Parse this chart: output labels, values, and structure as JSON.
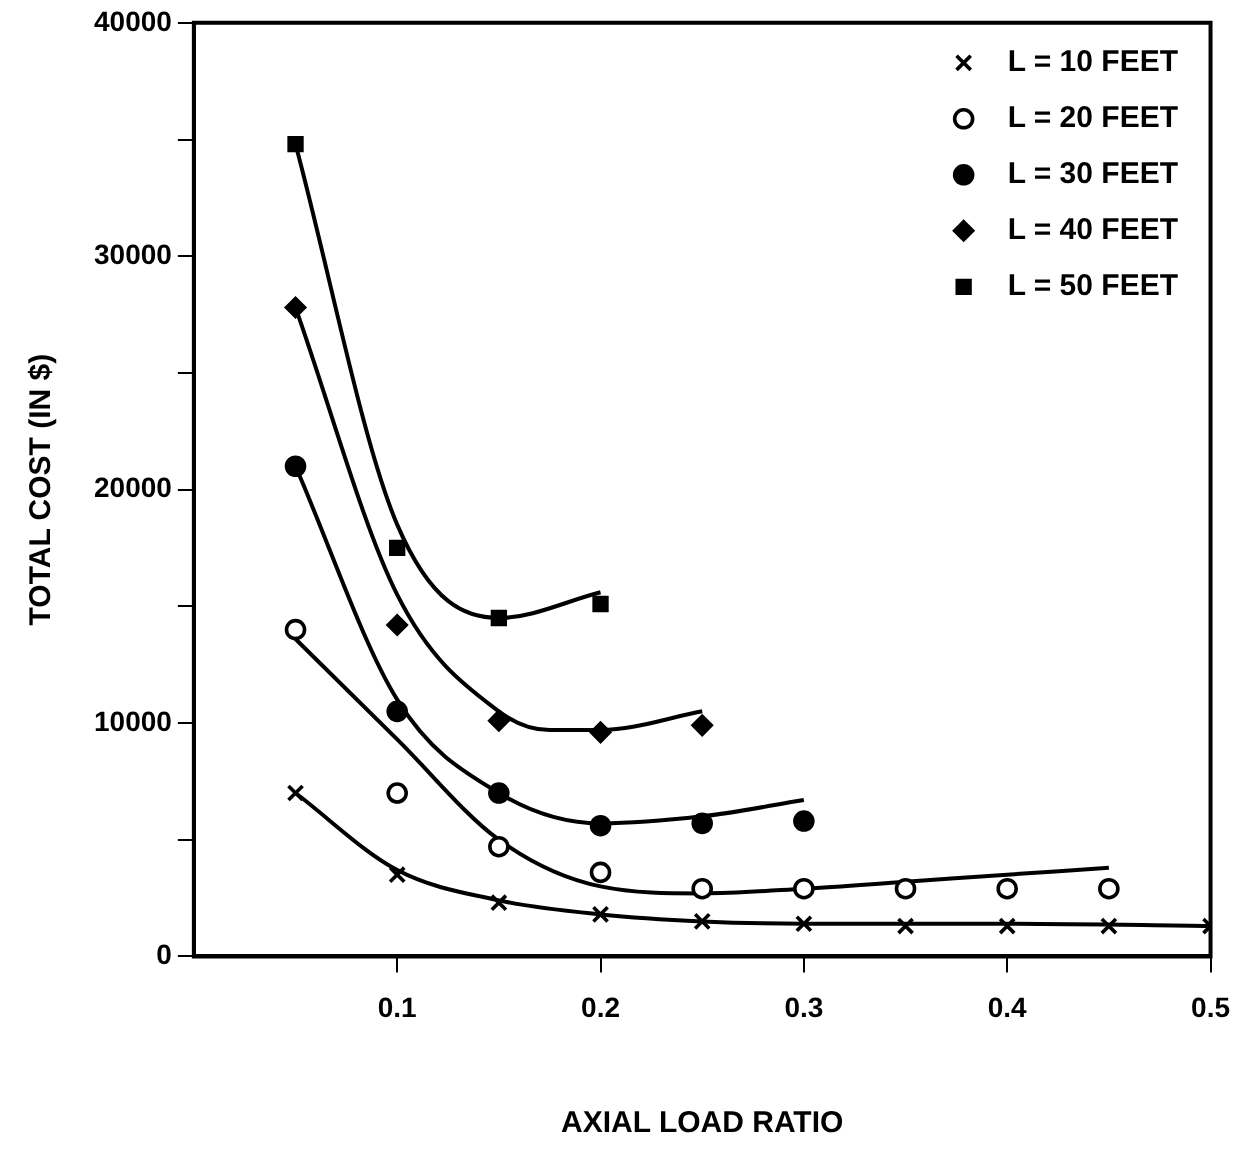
{
  "chart_data": {
    "type": "scatter",
    "xlabel": "AXIAL LOAD RATIO",
    "ylabel": "TOTAL COST (IN $)",
    "xlim": [
      0,
      0.5
    ],
    "xticks": [
      0.1,
      0.2,
      0.3,
      0.4,
      0.5
    ],
    "ylim": [
      0,
      40000
    ],
    "yticks": [
      0,
      {
        "value": 5000,
        "label": null
      },
      10000,
      {
        "value": 15000,
        "label": null
      },
      20000,
      {
        "value": 25000,
        "label": null
      },
      30000,
      {
        "value": 35000,
        "label": null
      },
      40000
    ],
    "grid": false,
    "legend": "top right",
    "series": [
      {
        "name": "L = 10 FEET",
        "color": "#000000",
        "marker": "cross",
        "x": [
          0.05,
          0.1,
          0.15,
          0.2,
          0.25,
          0.3,
          0.35,
          0.4,
          0.45,
          0.5
        ],
        "values": [
          7000,
          3500,
          2300,
          1800,
          1500,
          1400,
          1300,
          1300,
          1300,
          1300
        ]
      },
      {
        "name": "L = 20 FEET",
        "color": "#ffffff",
        "marker": "circle",
        "x": [
          0.05,
          0.1,
          0.15,
          0.2,
          0.25,
          0.3,
          0.35,
          0.4,
          0.45
        ],
        "values": [
          14000,
          7000,
          4700,
          3600,
          2900,
          2900,
          2900,
          2900,
          2900
        ]
      },
      {
        "name": "L = 30 FEET",
        "color": "#000000",
        "marker": "circle",
        "x": [
          0.05,
          0.1,
          0.15,
          0.2,
          0.25,
          0.3
        ],
        "values": [
          21000,
          10500,
          7000,
          5600,
          5700,
          5800
        ]
      },
      {
        "name": "L = 40 FEET",
        "color": "#000000",
        "marker": "diamond",
        "x": [
          0.05,
          0.1,
          0.15,
          0.2,
          0.25
        ],
        "values": [
          27800,
          14200,
          10100,
          9600,
          9900
        ]
      },
      {
        "name": "L = 50 FEET",
        "color": "#000000",
        "marker": "square",
        "x": [
          0.05,
          0.1,
          0.15,
          0.2
        ],
        "values": [
          34800,
          17500,
          14500,
          15100
        ]
      },
      {
        "type": "line",
        "color": "#000000",
        "marker": "none",
        "x": [
          0.05,
          0.1,
          0.15,
          0.2,
          0.25,
          0.3,
          0.4,
          0.5
        ],
        "values": [
          7000,
          3700,
          2400,
          1800,
          1500,
          1400,
          1400,
          1300
        ]
      },
      {
        "type": "line",
        "color": "#000000",
        "marker": "none",
        "x": [
          0.05,
          0.1,
          0.15,
          0.2,
          0.25,
          0.3,
          0.35,
          0.4,
          0.45
        ],
        "values": [
          13600,
          9300,
          5000,
          3000,
          2700,
          2900,
          3200,
          3500,
          3800
        ]
      },
      {
        "type": "line",
        "color": "#000000",
        "marker": "none",
        "x": [
          0.05,
          0.1,
          0.15,
          0.2,
          0.25,
          0.3
        ],
        "values": [
          21000,
          11000,
          7000,
          5700,
          6000,
          6700
        ]
      },
      {
        "type": "line",
        "color": "#000000",
        "marker": "none",
        "x": [
          0.05,
          0.1,
          0.15,
          0.175,
          0.2,
          0.25
        ],
        "values": [
          27800,
          15500,
          10500,
          9700,
          9700,
          10500
        ]
      },
      {
        "type": "line",
        "color": "#000000",
        "marker": "none",
        "x": [
          0.05,
          0.1,
          0.15,
          0.2
        ],
        "values": [
          34800,
          18500,
          14500,
          15600
        ]
      }
    ]
  }
}
